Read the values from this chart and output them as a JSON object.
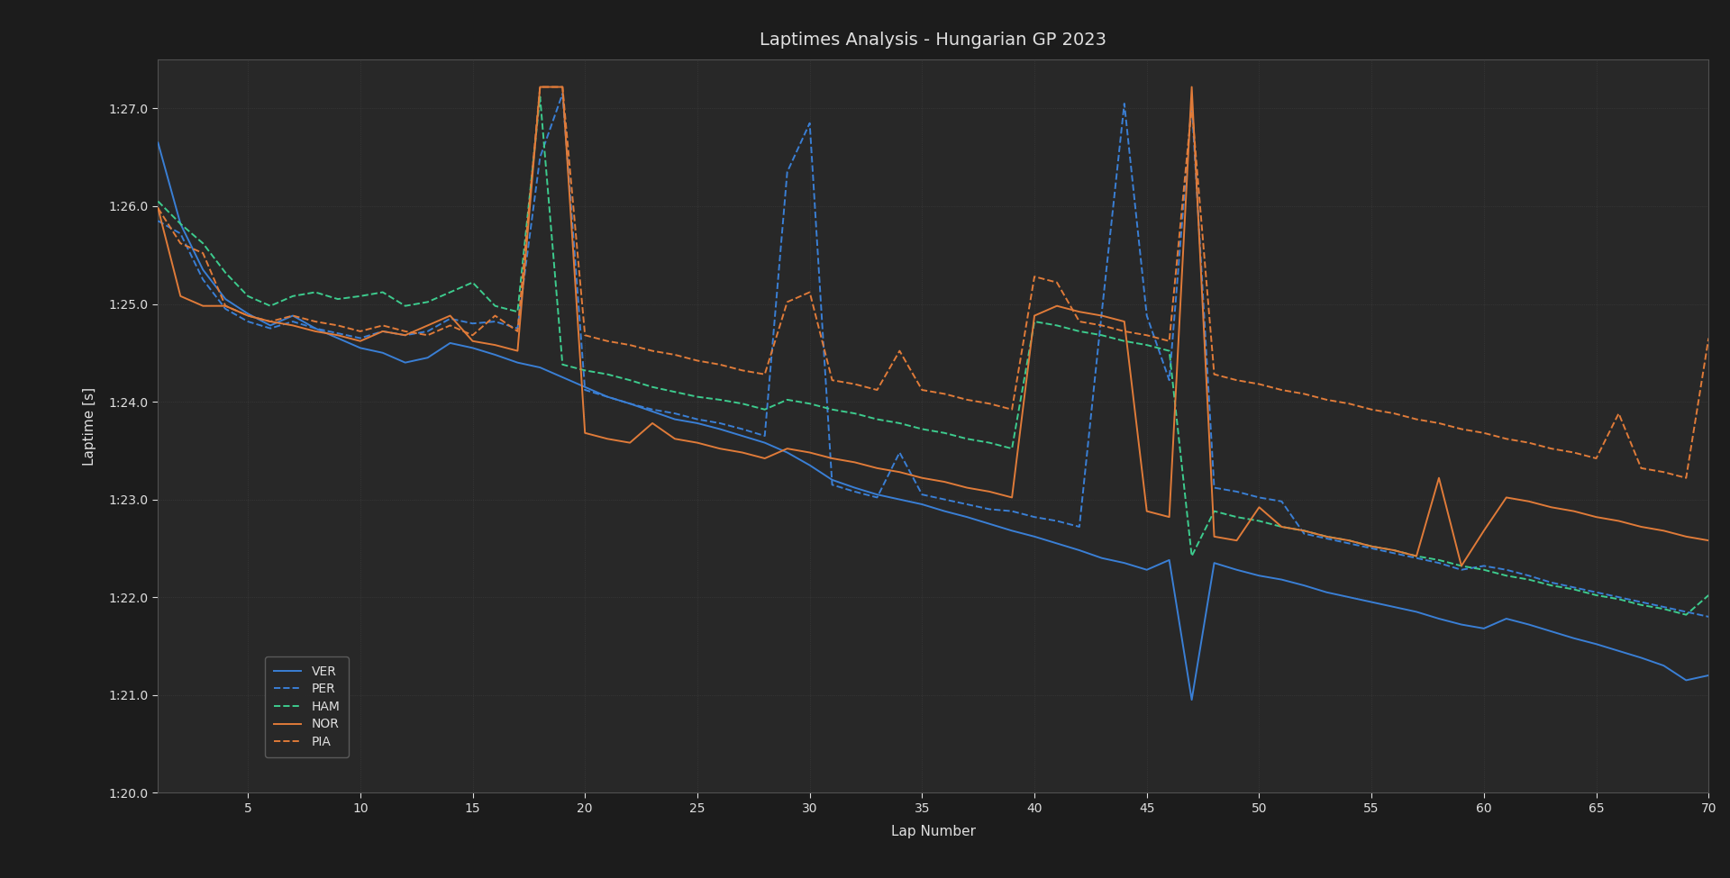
{
  "title": "Laptimes Analysis - Hungarian GP 2023",
  "xlabel": "Lap Number",
  "ylabel": "Laptime [s]",
  "background_color": "#1c1c1c",
  "axes_background": "#282828",
  "text_color": "#e0e0e0",
  "grid_color": "#404040",
  "title_fontsize": 14,
  "label_fontsize": 11,
  "tick_fontsize": 10,
  "legend_fontsize": 10,
  "ylim_min": 80.0,
  "ylim_max": 87.5,
  "drivers": [
    "VER",
    "PER",
    "HAM",
    "NOR",
    "PIA"
  ],
  "colors": [
    "#3a7fd5",
    "#3a7fd5",
    "#3dcc8e",
    "#e07b39",
    "#e07b39"
  ],
  "linestyles": [
    "-",
    "--",
    "--",
    "-",
    "--"
  ],
  "linewidths": [
    1.4,
    1.4,
    1.4,
    1.4,
    1.4
  ],
  "VER": [
    86.65,
    85.82,
    85.35,
    85.05,
    84.9,
    84.78,
    84.88,
    84.75,
    84.65,
    84.55,
    84.5,
    84.4,
    84.45,
    84.6,
    84.55,
    84.48,
    84.4,
    84.35,
    84.25,
    84.15,
    84.05,
    83.98,
    83.9,
    83.82,
    83.78,
    83.72,
    83.65,
    83.58,
    83.48,
    83.35,
    83.2,
    83.12,
    83.05,
    83.0,
    82.95,
    82.88,
    82.82,
    82.75,
    82.68,
    82.62,
    82.55,
    82.48,
    82.4,
    82.35,
    82.28,
    82.38,
    80.95,
    82.35,
    82.28,
    82.22,
    82.18,
    82.12,
    82.05,
    82.0,
    81.95,
    81.9,
    81.85,
    81.78,
    81.72,
    81.68,
    81.78,
    81.72,
    81.65,
    81.58,
    81.52,
    81.45,
    81.38,
    81.3,
    81.15,
    81.2
  ],
  "PER": [
    85.85,
    85.72,
    85.25,
    84.95,
    84.82,
    84.75,
    84.82,
    84.75,
    84.7,
    84.65,
    84.72,
    84.68,
    84.72,
    84.85,
    84.8,
    84.82,
    84.75,
    86.5,
    87.15,
    84.12,
    84.05,
    83.98,
    83.92,
    83.88,
    83.82,
    83.78,
    83.72,
    83.65,
    86.35,
    86.85,
    83.15,
    83.08,
    83.02,
    83.48,
    83.05,
    83.0,
    82.95,
    82.9,
    82.88,
    82.82,
    82.78,
    82.72,
    84.92,
    87.05,
    84.88,
    84.22,
    87.05,
    83.12,
    83.08,
    83.02,
    82.98,
    82.65,
    82.6,
    82.55,
    82.5,
    82.45,
    82.4,
    82.35,
    82.28,
    82.32,
    82.28,
    82.22,
    82.15,
    82.1,
    82.05,
    82.0,
    81.95,
    81.9,
    81.85,
    81.8
  ],
  "HAM": [
    86.05,
    85.82,
    85.62,
    85.32,
    85.08,
    84.98,
    85.08,
    85.12,
    85.05,
    85.08,
    85.12,
    84.98,
    85.02,
    85.12,
    85.22,
    84.98,
    84.92,
    87.12,
    84.38,
    84.32,
    84.28,
    84.22,
    84.15,
    84.1,
    84.05,
    84.02,
    83.98,
    83.92,
    84.02,
    83.98,
    83.92,
    83.88,
    83.82,
    83.78,
    83.72,
    83.68,
    83.62,
    83.58,
    83.52,
    84.82,
    84.78,
    84.72,
    84.68,
    84.62,
    84.58,
    84.52,
    82.42,
    82.88,
    82.82,
    82.78,
    82.72,
    82.68,
    82.62,
    82.58,
    82.52,
    82.48,
    82.42,
    82.38,
    82.32,
    82.28,
    82.22,
    82.18,
    82.12,
    82.08,
    82.02,
    81.98,
    81.92,
    81.88,
    81.82,
    82.02
  ],
  "NOR": [
    85.98,
    85.08,
    84.98,
    84.98,
    84.88,
    84.82,
    84.78,
    84.72,
    84.68,
    84.62,
    84.72,
    84.68,
    84.78,
    84.88,
    84.62,
    84.58,
    84.52,
    87.22,
    87.22,
    83.68,
    83.62,
    83.58,
    83.78,
    83.62,
    83.58,
    83.52,
    83.48,
    83.42,
    83.52,
    83.48,
    83.42,
    83.38,
    83.32,
    83.28,
    83.22,
    83.18,
    83.12,
    83.08,
    83.02,
    84.88,
    84.98,
    84.92,
    84.88,
    84.82,
    82.88,
    82.82,
    87.22,
    82.62,
    82.58,
    82.92,
    82.72,
    82.68,
    82.62,
    82.58,
    82.52,
    82.48,
    82.42,
    83.22,
    82.32,
    82.68,
    83.02,
    82.98,
    82.92,
    82.88,
    82.82,
    82.78,
    82.72,
    82.68,
    82.62,
    82.58
  ],
  "PIA": [
    85.98,
    85.62,
    85.52,
    84.98,
    84.88,
    84.82,
    84.88,
    84.82,
    84.78,
    84.72,
    84.78,
    84.72,
    84.68,
    84.78,
    84.68,
    84.88,
    84.72,
    87.22,
    87.22,
    84.68,
    84.62,
    84.58,
    84.52,
    84.48,
    84.42,
    84.38,
    84.32,
    84.28,
    85.02,
    85.12,
    84.22,
    84.18,
    84.12,
    84.52,
    84.12,
    84.08,
    84.02,
    83.98,
    83.92,
    85.28,
    85.22,
    84.82,
    84.78,
    84.72,
    84.68,
    84.62,
    87.02,
    84.28,
    84.22,
    84.18,
    84.12,
    84.08,
    84.02,
    83.98,
    83.92,
    83.88,
    83.82,
    83.78,
    83.72,
    83.68,
    83.62,
    83.58,
    83.52,
    83.48,
    83.42,
    83.88,
    83.32,
    83.28,
    83.22,
    84.65
  ]
}
